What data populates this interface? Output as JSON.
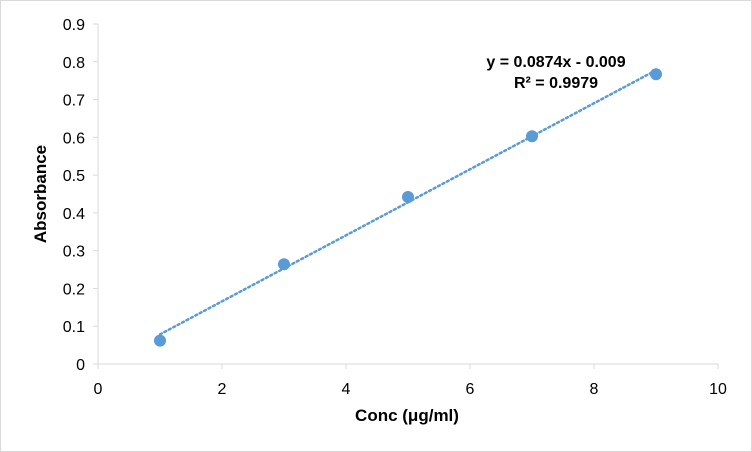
{
  "chart_data": {
    "type": "scatter",
    "title": "",
    "xlabel": "Conc (μg/ml)",
    "ylabel": "Absorbance",
    "xlim": [
      0,
      10
    ],
    "ylim": [
      0,
      0.9
    ],
    "x_ticks": [
      "0",
      "2",
      "4",
      "6",
      "8",
      "10"
    ],
    "y_ticks": [
      "0",
      "0.1",
      "0.2",
      "0.3",
      "0.4",
      "0.5",
      "0.6",
      "0.7",
      "0.8",
      "0.9"
    ],
    "grid": false,
    "series": [
      {
        "x": [
          1,
          3,
          5,
          7,
          9
        ],
        "y": [
          0.062,
          0.264,
          0.442,
          0.603,
          0.767
        ],
        "color": "#5b9bd5"
      }
    ],
    "trendline": {
      "type": "linear",
      "slope": 0.0874,
      "intercept": -0.009,
      "x_range": [
        1,
        9
      ],
      "color": "#5b9bd5",
      "style": "dotted"
    },
    "annotations": {
      "equation": "y = 0.0874x - 0.009",
      "r_squared": "R² = 0.9979"
    }
  }
}
